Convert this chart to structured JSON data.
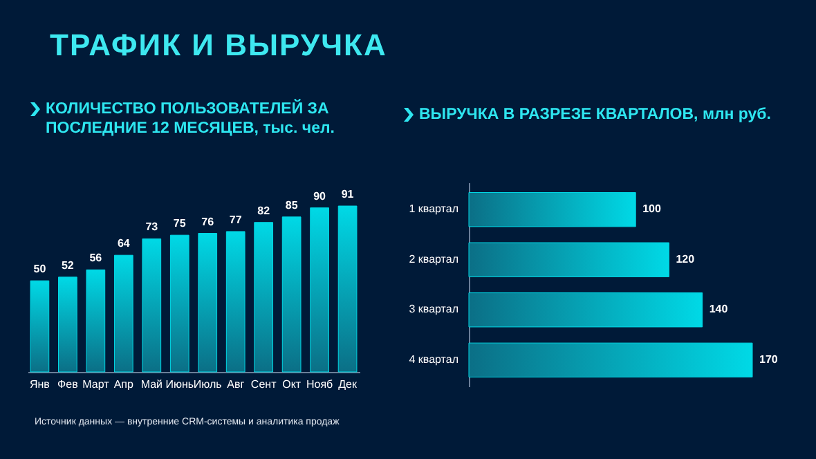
{
  "chart_data": [
    {
      "type": "bar",
      "title": "ТРАФИК И ВЫРУЧКА",
      "subtitle": "КОЛИЧЕСТВО ПОЛЬЗОВАТЕЛЕЙ ЗА ПОСЛЕДНИЕ 12 МЕСЯЦЕВ, тыс. чел.",
      "categories": [
        "Янв",
        "Фев",
        "Март",
        "Апр",
        "Май",
        "Июнь",
        "Июль",
        "Авг",
        "Сент",
        "Окт",
        "Нояб",
        "Дек"
      ],
      "values": [
        50,
        52,
        56,
        64,
        73,
        75,
        76,
        77,
        82,
        85,
        90,
        91
      ],
      "color": "#00d9e6",
      "data_labels": true,
      "tick_labels": "x",
      "annotations": [
        "Источник данных — внутренние CRM-системы и аналитика продаж"
      ]
    },
    {
      "type": "bar",
      "orientation": "horizontal",
      "title": "ВЫРУЧКА В РАЗРЕЗЕ КВАРТАЛОВ, млн руб.",
      "categories": [
        "1 квартал",
        "2 квартал",
        "3 квартал",
        "4 квартал"
      ],
      "values": [
        100,
        120,
        140,
        170
      ],
      "color": "#00d9e6",
      "data_labels": true,
      "tick_labels": "y"
    }
  ]
}
